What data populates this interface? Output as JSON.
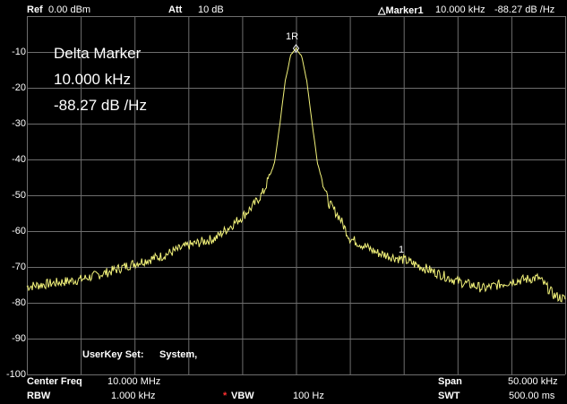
{
  "header": {
    "ref_label": "Ref",
    "ref_value": "0.00 dBm",
    "att_label": "Att",
    "att_value": "10 dB",
    "marker_label": "△Marker1",
    "marker_freq": "10.000 kHz",
    "marker_level": "-88.27 dB /Hz"
  },
  "delta_box": {
    "title": "Delta Marker",
    "freq": "10.000 kHz",
    "level": "-88.27 dB /Hz"
  },
  "y_axis": {
    "ticks": [
      "-10",
      "-20",
      "-30",
      "-40",
      "-50",
      "-60",
      "-70",
      "-80",
      "-90",
      "-100"
    ]
  },
  "markers": {
    "reference": "1R",
    "delta": "1"
  },
  "userkey": {
    "label": "UserKey Set:",
    "value": "System,"
  },
  "footer": {
    "center_freq_label": "Center Freq",
    "center_freq_value": "10.000 MHz",
    "span_label": "Span",
    "span_value": "50.000 kHz",
    "rbw_label": "RBW",
    "rbw_value": "1.000 kHz",
    "vbw_star": "*",
    "vbw_label": "VBW",
    "vbw_value": "100 Hz",
    "swt_label": "SWT",
    "swt_value": "500.00 ms"
  },
  "colors": {
    "trace": "#f2f27a",
    "grid": "#6e6e6e",
    "vbw_star": "#ff3030"
  },
  "chart_data": {
    "type": "line",
    "ylim": [
      -100,
      0
    ],
    "xlim": [
      -25,
      25
    ],
    "x_unit": "kHz offset from center",
    "y_unit": "dBm",
    "series": [
      {
        "x": [
          -25,
          -22.5,
          -20,
          -17.5,
          -15,
          -12.5,
          -10,
          -7.5,
          -5,
          -4,
          -3,
          -2,
          -1.5,
          -1,
          -0.5,
          0,
          0.5,
          1,
          1.5,
          2,
          3,
          4,
          5,
          7.5,
          10,
          12.5,
          15,
          17.5,
          20,
          22.5,
          24,
          25
        ],
        "values": [
          -75.5,
          -74.5,
          -73.5,
          -71.5,
          -69,
          -67,
          -64,
          -62,
          -56,
          -53,
          -49,
          -41,
          -30,
          -18,
          -11,
          -9,
          -11,
          -18,
          -30,
          -41,
          -52,
          -56,
          -62,
          -66,
          -68,
          -71,
          -74,
          -76,
          -74,
          -73,
          -78,
          -79
        ]
      }
    ]
  }
}
